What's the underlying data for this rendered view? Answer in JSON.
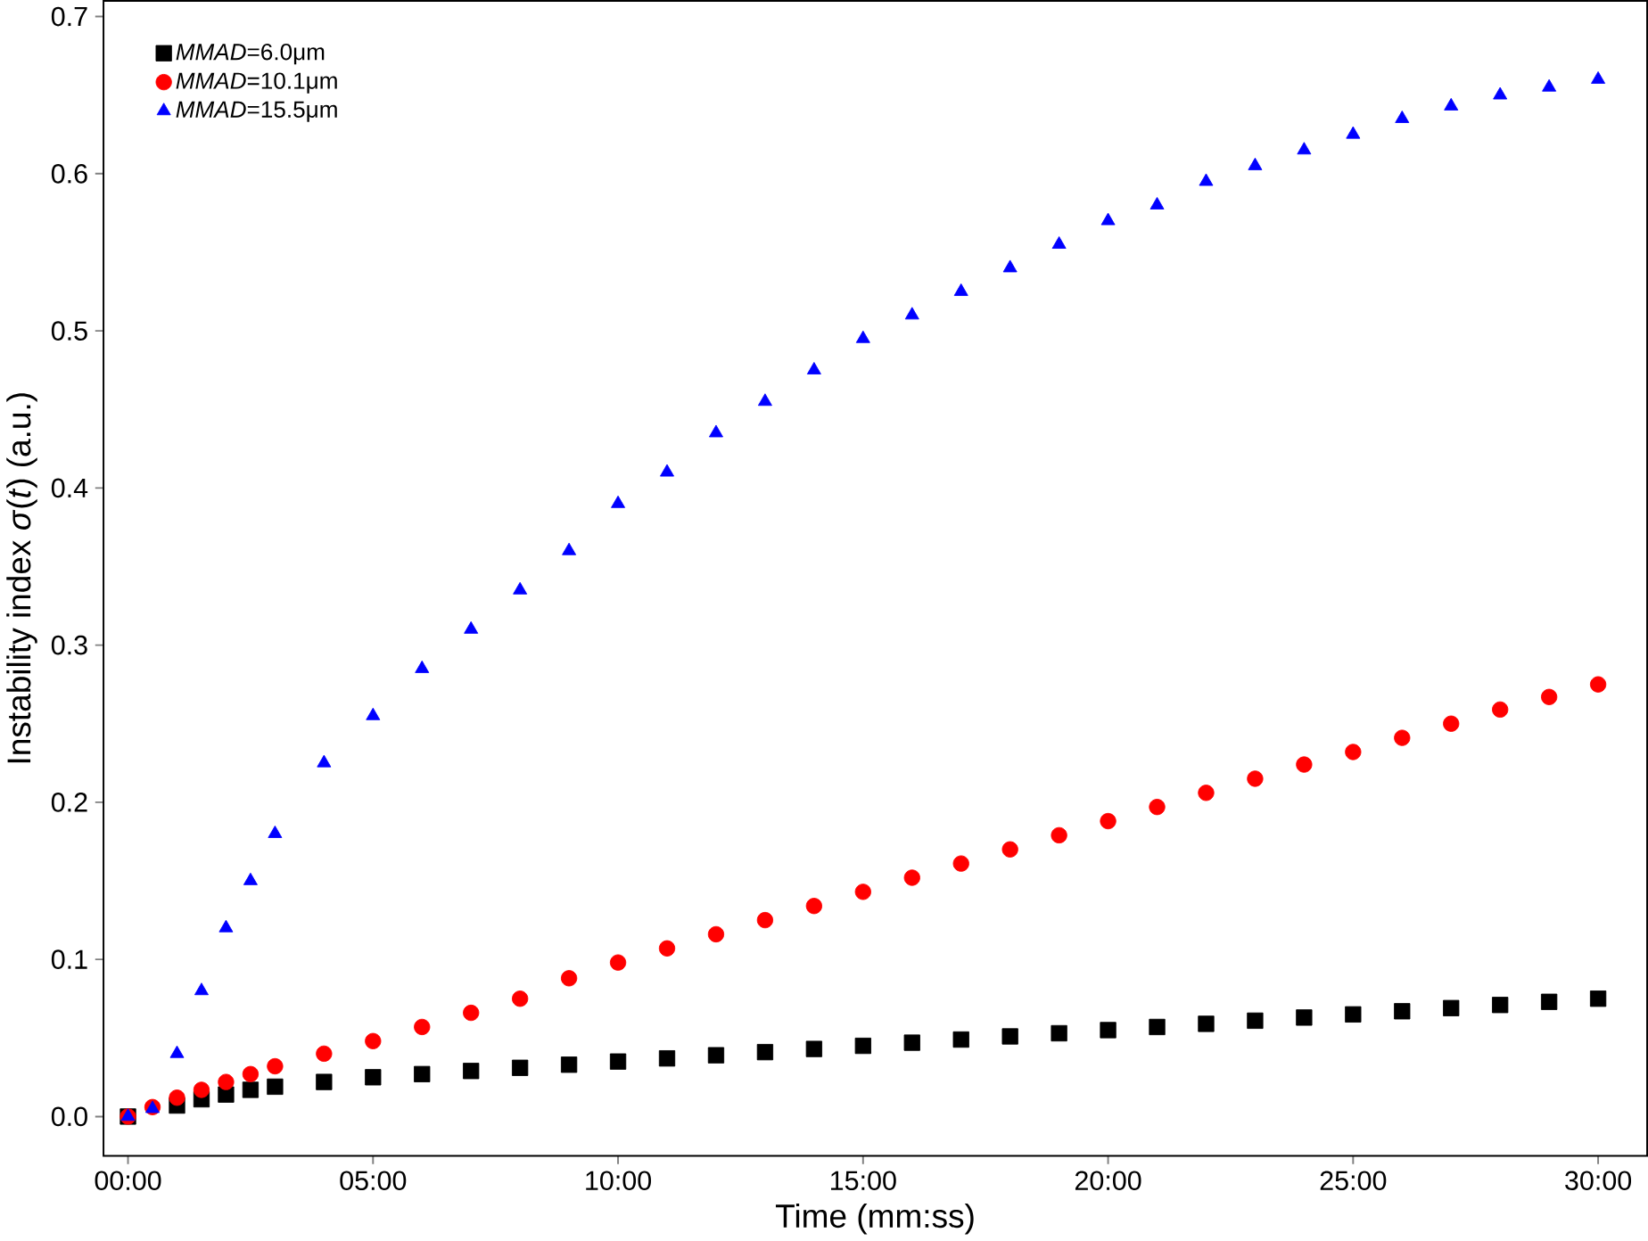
{
  "chart_data": {
    "type": "scatter",
    "xlabel": "Time (mm:ss)",
    "ylabel": "Instability index *σ*(*t*) (a.u.)",
    "x": [
      0,
      0.5,
      1,
      1.5,
      2,
      2.5,
      3,
      4,
      5,
      6,
      7,
      8,
      9,
      10,
      11,
      12,
      13,
      14,
      15,
      16,
      17,
      18,
      19,
      20,
      21,
      22,
      23,
      24,
      25,
      26,
      27,
      28,
      29,
      30
    ],
    "xlim": [
      -0.5,
      31
    ],
    "ylim": [
      -0.025,
      0.71
    ],
    "xticks": [
      {
        "value": 0,
        "label": "00:00"
      },
      {
        "value": 5,
        "label": "05:00"
      },
      {
        "value": 10,
        "label": "10:00"
      },
      {
        "value": 15,
        "label": "15:00"
      },
      {
        "value": 20,
        "label": "20:00"
      },
      {
        "value": 25,
        "label": "25:00"
      },
      {
        "value": 30,
        "label": "30:00"
      }
    ],
    "yticks": [
      {
        "value": 0,
        "label": "0.0"
      },
      {
        "value": 0.1,
        "label": "0.1"
      },
      {
        "value": 0.2,
        "label": "0.2"
      },
      {
        "value": 0.3,
        "label": "0.3"
      },
      {
        "value": 0.4,
        "label": "0.4"
      },
      {
        "value": 0.5,
        "label": "0.5"
      },
      {
        "value": 0.6,
        "label": "0.6"
      },
      {
        "value": 0.7,
        "label": "0.7"
      }
    ],
    "legend": "top left",
    "grid": false,
    "series": [
      {
        "name": "*MMAD*=6.0μm",
        "color": "#000000",
        "marker": "square",
        "values": [
          0,
          null,
          0.007,
          0.011,
          0.014,
          0.017,
          0.019,
          0.022,
          0.025,
          0.027,
          0.029,
          0.031,
          0.033,
          0.035,
          0.037,
          0.039,
          0.041,
          0.043,
          0.045,
          0.047,
          0.049,
          0.051,
          0.053,
          0.055,
          0.057,
          0.059,
          0.061,
          0.063,
          0.065,
          0.067,
          0.069,
          0.071,
          0.073,
          0.075
        ]
      },
      {
        "name": "*MMAD*=10.1μm",
        "color": "#ff0000",
        "marker": "circle",
        "values": [
          0,
          0.006,
          0.012,
          0.017,
          0.022,
          0.027,
          0.032,
          0.04,
          0.048,
          0.057,
          0.066,
          0.075,
          0.088,
          0.098,
          0.107,
          0.116,
          0.125,
          0.134,
          0.143,
          0.152,
          0.161,
          0.17,
          0.179,
          0.188,
          0.197,
          0.206,
          0.215,
          0.224,
          0.232,
          0.241,
          0.25,
          0.259,
          0.267,
          0.275
        ]
      },
      {
        "name": "*MMAD*=15.5μm",
        "color": "#0000ff",
        "marker": "triangle",
        "values": [
          0,
          0.005,
          0.04,
          0.08,
          0.12,
          0.15,
          0.18,
          0.225,
          0.255,
          0.285,
          0.31,
          0.335,
          0.36,
          0.39,
          0.41,
          0.435,
          0.455,
          0.475,
          0.495,
          0.51,
          0.525,
          0.54,
          0.555,
          0.57,
          0.58,
          0.595,
          0.605,
          0.615,
          0.625,
          0.635,
          0.643,
          0.65,
          0.655,
          0.66
        ]
      }
    ]
  }
}
